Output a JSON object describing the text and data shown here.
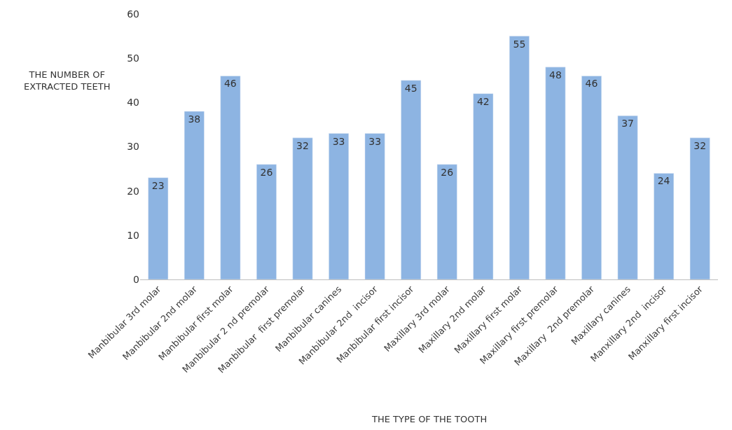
{
  "chart_data": {
    "type": "bar",
    "xlabel": "THE TYPE OF THE TOOTH",
    "ylabel": "THE NUMBER OF\nEXTRACTED TEETH",
    "categories": [
      "Manbibular 3rd molar",
      "Manbibular 2nd molar",
      "Manbibular first molar",
      "Manbibular 2 nd premolar",
      "Manbibular  first premolar",
      "Manbibular canines",
      "Manbibular 2nd  incisor",
      "Manbibular first incisor",
      "Maxillary 3rd molar",
      "Maxillary 2nd molar",
      "Maxillary first molar",
      "Maxillary first premolar",
      "Maxillary  2nd premolar",
      "Maxillary canines",
      "Manxillary 2nd  incisor",
      "Manxillary first incisor"
    ],
    "values": [
      23,
      38,
      46,
      26,
      32,
      33,
      33,
      45,
      26,
      42,
      55,
      48,
      46,
      37,
      24,
      32
    ],
    "color": "#8db4e2",
    "ylim": [
      0,
      60
    ],
    "yticks": [
      0,
      10,
      20,
      30,
      40,
      50,
      60
    ],
    "data_labels": true,
    "grid": false
  }
}
